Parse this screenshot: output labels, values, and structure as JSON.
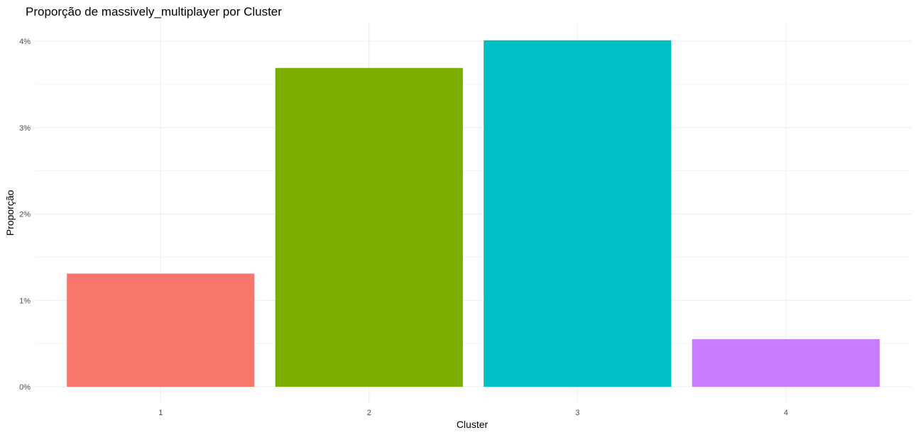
{
  "chart_data": {
    "type": "bar",
    "title": "Proporção de massively_multiplayer por Cluster",
    "xlabel": "Cluster",
    "ylabel": "Proporção",
    "categories": [
      "1",
      "2",
      "3",
      "4"
    ],
    "values": [
      1.31,
      3.69,
      4.01,
      0.55
    ],
    "colors": [
      "#F8766D",
      "#7CAE00",
      "#00BFC4",
      "#C77CFF"
    ],
    "ylim": [
      0,
      4.2
    ],
    "yticks": [
      0,
      1,
      2,
      3,
      4
    ],
    "ytick_labels": [
      "0%",
      "1%",
      "2%",
      "3%",
      "4%"
    ],
    "grid": true,
    "legend": "none"
  }
}
